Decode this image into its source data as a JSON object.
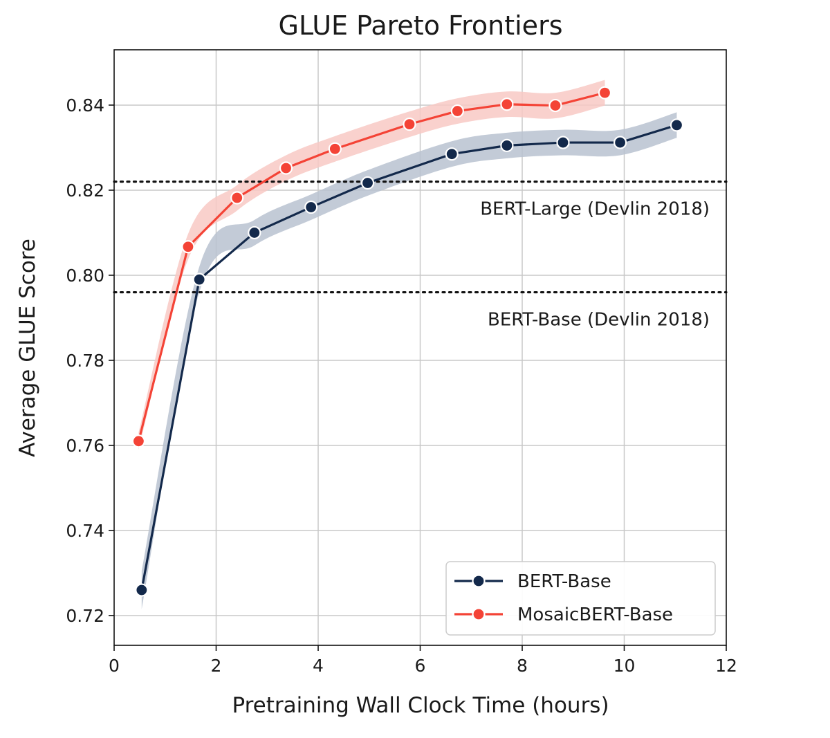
{
  "chart_data": {
    "type": "line",
    "title": "GLUE Pareto Frontiers",
    "xlabel": "Pretraining Wall Clock Time (hours)",
    "ylabel": "Average GLUE Score",
    "xlim": [
      0,
      12
    ],
    "ylim": [
      0.713,
      0.853
    ],
    "xticks": [
      0,
      2,
      4,
      6,
      8,
      10,
      12
    ],
    "xtick_labels": [
      "0",
      "2",
      "4",
      "6",
      "8",
      "10",
      "12"
    ],
    "yticks": [
      0.72,
      0.74,
      0.76,
      0.78,
      0.8,
      0.82,
      0.84
    ],
    "ytick_labels": [
      "0.72",
      "0.74",
      "0.76",
      "0.78",
      "0.80",
      "0.82",
      "0.84"
    ],
    "grid": true,
    "legend_position": "bottom-right",
    "series": [
      {
        "name": "BERT-Base",
        "color": "#13294b",
        "band_color": "#b8c2d0",
        "x": [
          0.54,
          1.67,
          2.75,
          3.86,
          4.97,
          6.62,
          7.7,
          8.8,
          9.92,
          11.03
        ],
        "y": [
          0.726,
          0.799,
          0.81,
          0.816,
          0.8217,
          0.8285,
          0.8305,
          0.8312,
          0.8312,
          0.8353
        ],
        "band": [
          0.0045,
          0.003,
          0.003,
          0.003,
          0.003,
          0.003,
          0.003,
          0.003,
          0.003,
          0.003
        ]
      },
      {
        "name": "MosaicBERT-Base",
        "color": "#f44336",
        "band_color": "#f8c9c4",
        "x": [
          0.48,
          1.45,
          2.41,
          3.37,
          4.33,
          5.79,
          6.73,
          7.7,
          8.65,
          9.62
        ],
        "y": [
          0.761,
          0.8067,
          0.8182,
          0.8252,
          0.8297,
          0.8355,
          0.8386,
          0.8402,
          0.8399,
          0.8429
        ],
        "band": [
          0.002,
          0.003,
          0.003,
          0.003,
          0.003,
          0.003,
          0.003,
          0.003,
          0.003,
          0.003
        ]
      }
    ],
    "reference_lines": [
      {
        "label": "BERT-Large (Devlin 2018)",
        "y": 0.822
      },
      {
        "label": "BERT-Base (Devlin 2018)",
        "y": 0.796
      }
    ]
  }
}
